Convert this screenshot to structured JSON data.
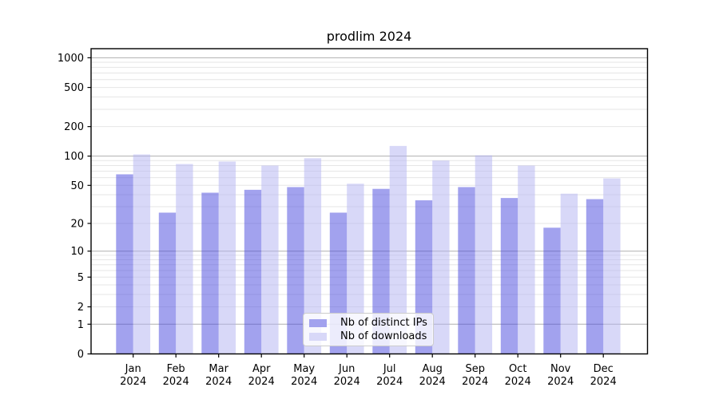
{
  "chart_data": {
    "type": "bar",
    "title": "prodlim 2024",
    "categories": [
      "Jan",
      "Feb",
      "Mar",
      "Apr",
      "May",
      "Jun",
      "Jul",
      "Aug",
      "Sep",
      "Oct",
      "Nov",
      "Dec"
    ],
    "category_year": "2024",
    "series": [
      {
        "name": "Nb of distinct IPs",
        "color": "#a2a2ee",
        "values": [
          65,
          26,
          42,
          45,
          48,
          26,
          46,
          35,
          48,
          37,
          18,
          36
        ]
      },
      {
        "name": "Nb of downloads",
        "color": "#d8d8f8",
        "values": [
          104,
          83,
          88,
          80,
          95,
          52,
          127,
          90,
          102,
          80,
          41,
          59
        ]
      }
    ],
    "yscale": "log1p",
    "yticks": [
      1000,
      500,
      200,
      100,
      50,
      20,
      10,
      5,
      2,
      1,
      0
    ],
    "ylim": [
      0,
      1215
    ],
    "xlabel": "",
    "ylabel": "",
    "legend_position": "lower-center",
    "grid": {
      "major_lines": [
        1,
        10,
        100,
        1000
      ],
      "minor_lines": [
        2,
        3,
        4,
        5,
        6,
        7,
        8,
        9,
        20,
        30,
        40,
        50,
        60,
        70,
        80,
        90,
        200,
        300,
        400,
        500,
        600,
        700,
        800,
        900
      ],
      "major_color": "#b0b0b0",
      "minor_color": "#e6e6e6"
    },
    "colors": {
      "axis": "#000000",
      "text": "#000000",
      "background": "#ffffff"
    }
  }
}
